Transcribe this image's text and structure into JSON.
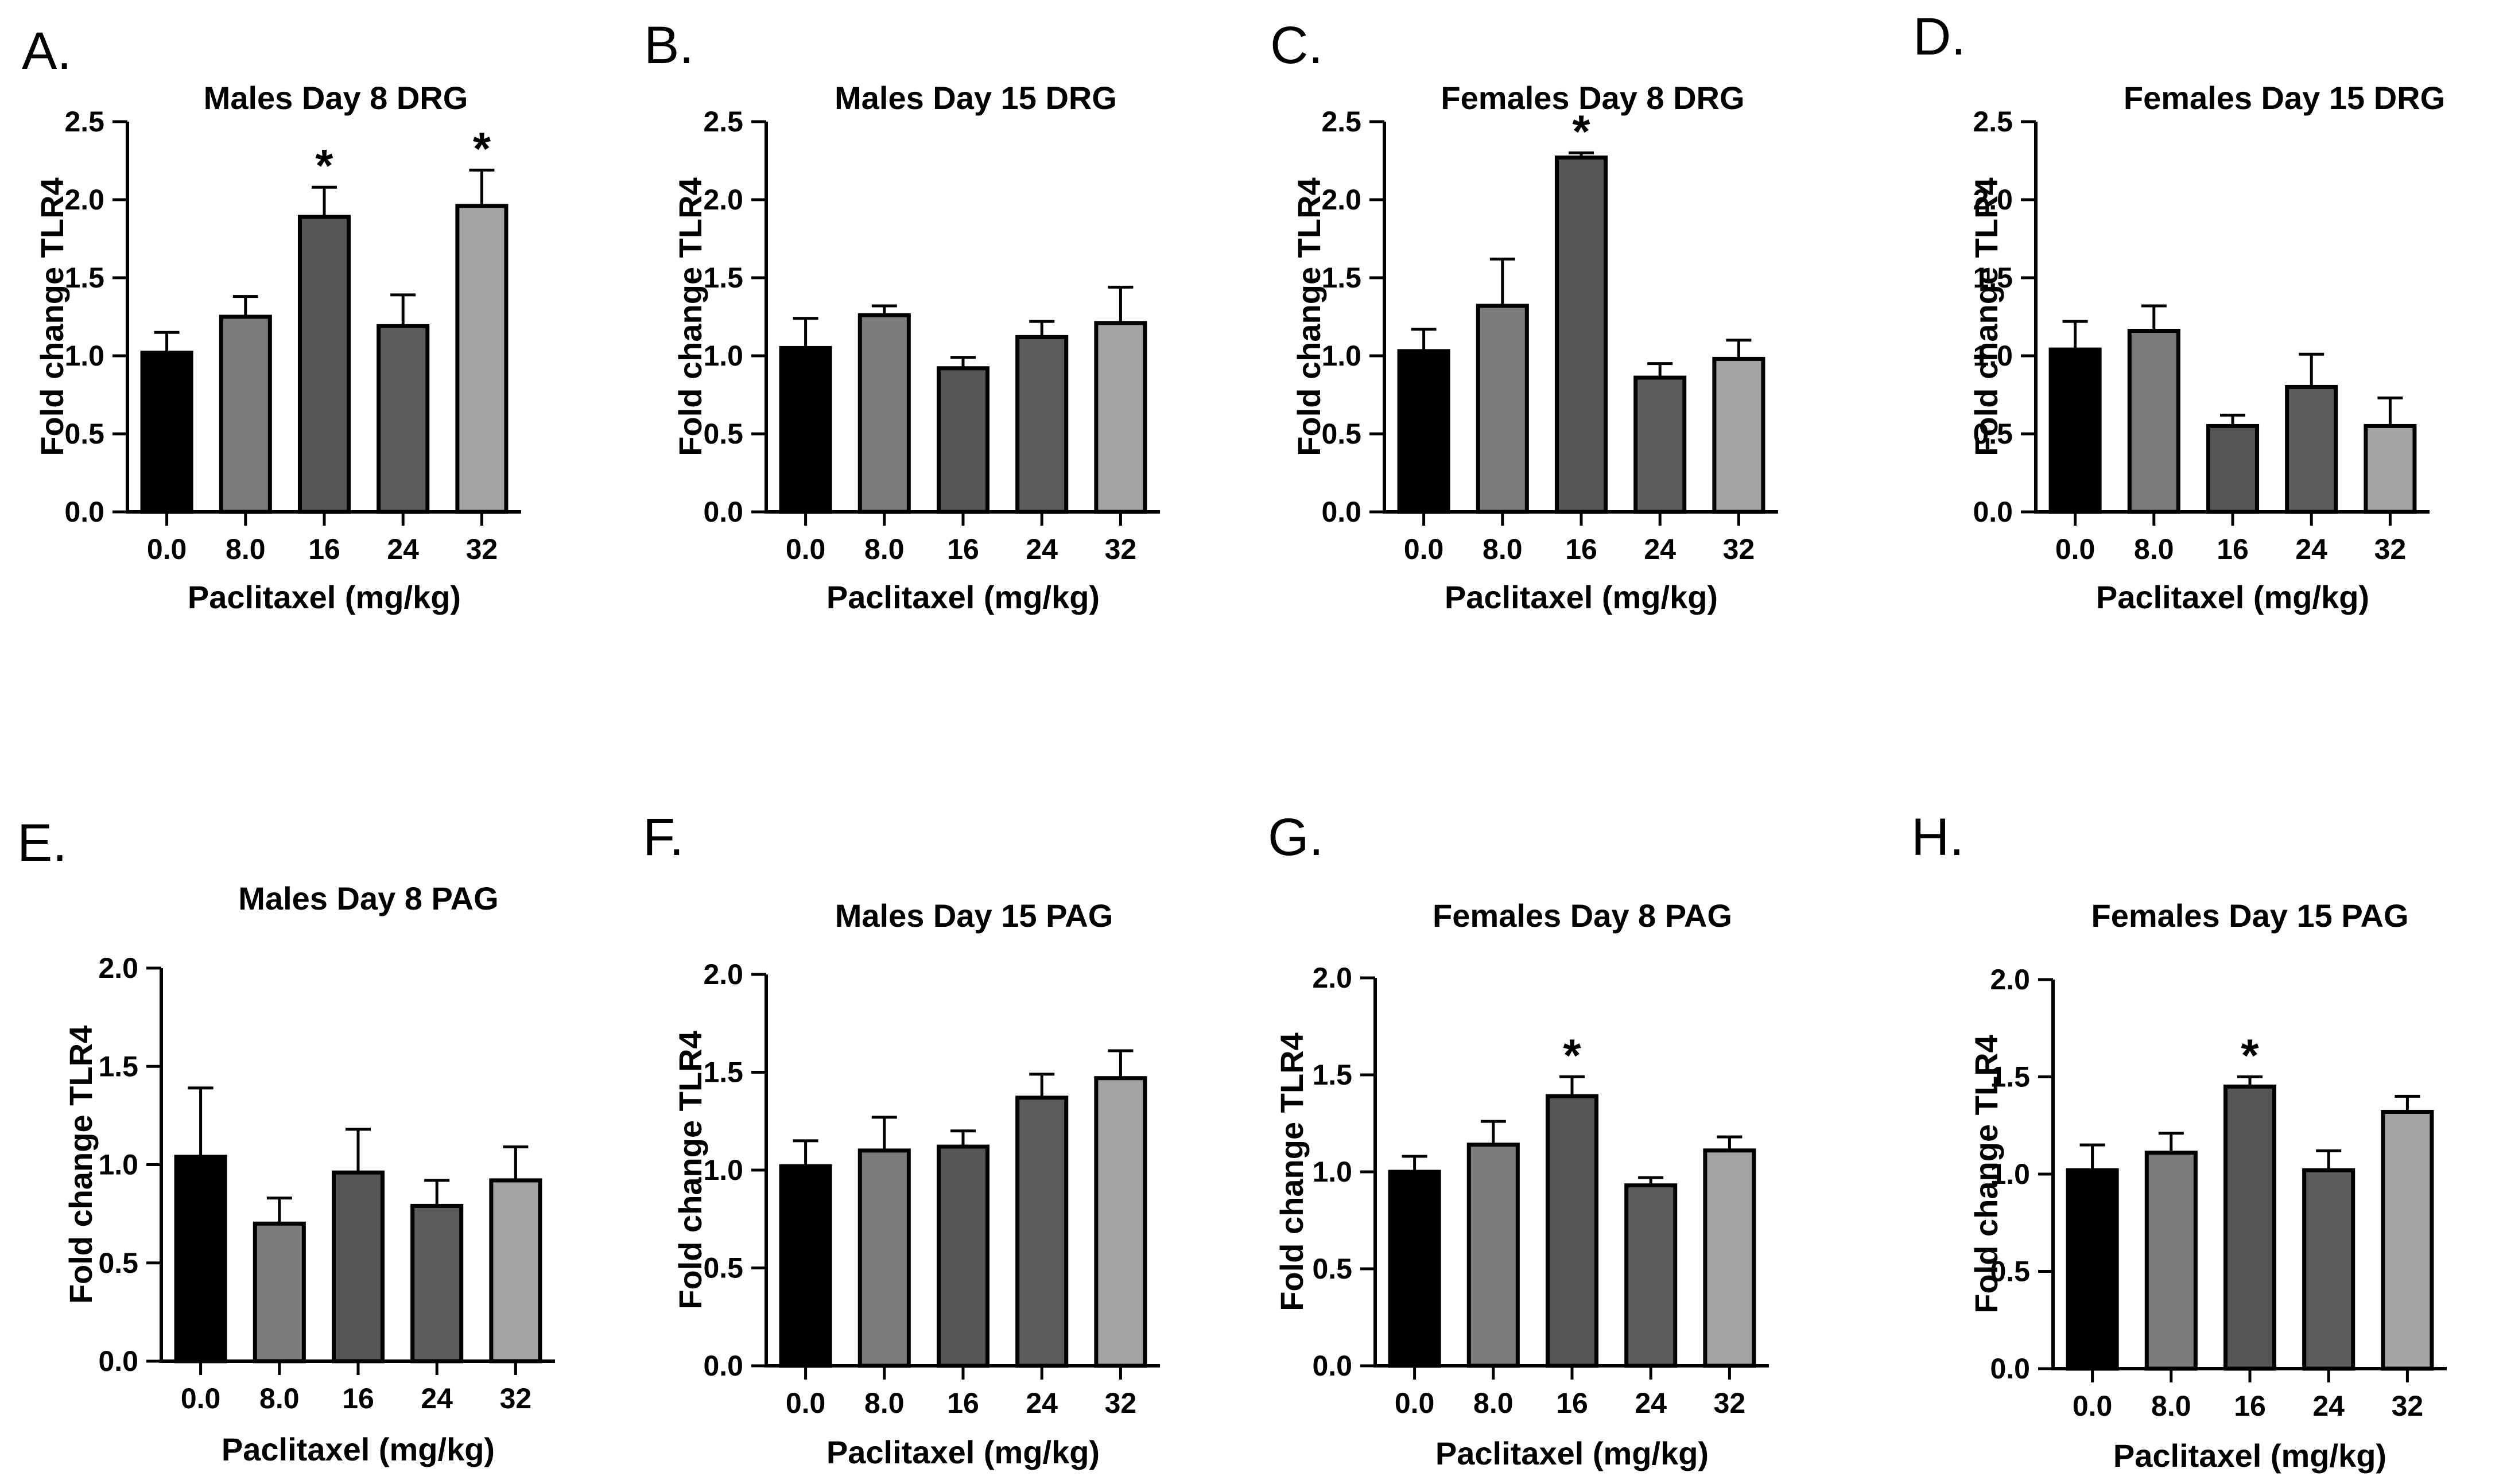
{
  "colors": {
    "bar_fills": [
      "#000000",
      "#7b7b7b",
      "#555555",
      "#5c5c5c",
      "#a4a4a4"
    ],
    "axis": "#000000",
    "background": "#ffffff"
  },
  "chart_data": [
    {
      "id": "A",
      "panel_letter": "A.",
      "type": "bar",
      "title": "Males Day 8 DRG",
      "ylabel": "Fold change  TLR4",
      "xlabel": "Paclitaxel (mg/kg)",
      "categories": [
        "0.0",
        "8.0",
        "16",
        "24",
        "32"
      ],
      "values": [
        1.02,
        1.25,
        1.89,
        1.19,
        1.96
      ],
      "errors": [
        0.13,
        0.13,
        0.19,
        0.2,
        0.23
      ],
      "significant": [
        false,
        false,
        true,
        false,
        true
      ],
      "significance_marker": "*",
      "ylim": [
        0,
        2.5
      ],
      "yticks": [
        "0.0",
        "0.5",
        "1.0",
        "1.5",
        "2.0",
        "2.5"
      ]
    },
    {
      "id": "B",
      "panel_letter": "B.",
      "type": "bar",
      "title": "Males Day 15 DRG",
      "ylabel": "Fold change  TLR4",
      "xlabel": "Paclitaxel (mg/kg)",
      "categories": [
        "0.0",
        "8.0",
        "16",
        "24",
        "32"
      ],
      "values": [
        1.05,
        1.26,
        0.92,
        1.12,
        1.21
      ],
      "errors": [
        0.19,
        0.06,
        0.07,
        0.1,
        0.23
      ],
      "significant": [
        false,
        false,
        false,
        false,
        false
      ],
      "significance_marker": "*",
      "ylim": [
        0,
        2.5
      ],
      "yticks": [
        "0.0",
        "0.5",
        "1.0",
        "1.5",
        "2.0",
        "2.5"
      ]
    },
    {
      "id": "C",
      "panel_letter": "C.",
      "type": "bar",
      "title": "Females Day 8 DRG",
      "ylabel": "Fold change TLR4",
      "xlabel": "Paclitaxel (mg/kg)",
      "categories": [
        "0.0",
        "8.0",
        "16",
        "24",
        "32"
      ],
      "values": [
        1.03,
        1.32,
        2.27,
        0.86,
        0.98
      ],
      "errors": [
        0.14,
        0.3,
        0.03,
        0.09,
        0.12
      ],
      "significant": [
        false,
        false,
        true,
        false,
        false
      ],
      "significance_marker": "*",
      "ylim": [
        0,
        2.5
      ],
      "yticks": [
        "0.0",
        "0.5",
        "1.0",
        "1.5",
        "2.0",
        "2.5"
      ]
    },
    {
      "id": "D",
      "panel_letter": "D.",
      "type": "bar",
      "title": "Females Day 15 DRG",
      "ylabel": "Fold change TLR4",
      "xlabel": "Paclitaxel (mg/kg)",
      "categories": [
        "0.0",
        "8.0",
        "16",
        "24",
        "32"
      ],
      "values": [
        1.04,
        1.16,
        0.55,
        0.8,
        0.55
      ],
      "errors": [
        0.18,
        0.16,
        0.07,
        0.21,
        0.18
      ],
      "significant": [
        false,
        false,
        false,
        false,
        false
      ],
      "significance_marker": "*",
      "ylim": [
        0,
        2.5
      ],
      "yticks": [
        "0.0",
        "0.5",
        "1.0",
        "1.5",
        "2.0",
        "2.5"
      ]
    },
    {
      "id": "E",
      "panel_letter": "E.",
      "type": "bar",
      "title": "Males Day 8 PAG",
      "ylabel": "Fold change  TLR4",
      "xlabel": "Paclitaxel (mg/kg)",
      "categories": [
        "0.0",
        "8.0",
        "16",
        "24",
        "32"
      ],
      "values": [
        1.04,
        0.7,
        0.96,
        0.79,
        0.92
      ],
      "errors": [
        0.35,
        0.13,
        0.22,
        0.13,
        0.17
      ],
      "significant": [
        false,
        false,
        false,
        false,
        false
      ],
      "significance_marker": "*",
      "ylim": [
        0,
        2.0
      ],
      "yticks": [
        "0.0",
        "0.5",
        "1.0",
        "1.5",
        "2.0"
      ]
    },
    {
      "id": "F",
      "panel_letter": "F.",
      "type": "bar",
      "title": "Males Day 15 PAG",
      "ylabel": "Fold change  TLR4",
      "xlabel": "Paclitaxel (mg/kg)",
      "categories": [
        "0.0",
        "8.0",
        "16",
        "24",
        "32"
      ],
      "values": [
        1.02,
        1.1,
        1.12,
        1.37,
        1.47
      ],
      "errors": [
        0.13,
        0.17,
        0.08,
        0.12,
        0.14
      ],
      "significant": [
        false,
        false,
        false,
        false,
        false
      ],
      "significance_marker": "*",
      "ylim": [
        0,
        2.0
      ],
      "yticks": [
        "0.0",
        "0.5",
        "1.0",
        "1.5",
        "2.0"
      ]
    },
    {
      "id": "G",
      "panel_letter": "G.",
      "type": "bar",
      "title": "Females Day 8 PAG",
      "ylabel": "Fold change TLR4",
      "xlabel": "Paclitaxel (mg/kg)",
      "categories": [
        "0.0",
        "8.0",
        "16",
        "24",
        "32"
      ],
      "values": [
        1.0,
        1.14,
        1.39,
        0.93,
        1.11
      ],
      "errors": [
        0.08,
        0.12,
        0.1,
        0.04,
        0.07
      ],
      "significant": [
        false,
        false,
        true,
        false,
        false
      ],
      "significance_marker": "*",
      "ylim": [
        0,
        2.0
      ],
      "yticks": [
        "0.0",
        "0.5",
        "1.0",
        "1.5",
        "2.0"
      ]
    },
    {
      "id": "H",
      "panel_letter": "H.",
      "type": "bar",
      "title": "Females Day 15 PAG",
      "ylabel": "Fold change TLR4",
      "xlabel": "Paclitaxel (mg/kg)",
      "categories": [
        "0.0",
        "8.0",
        "16",
        "24",
        "32"
      ],
      "values": [
        1.02,
        1.11,
        1.45,
        1.02,
        1.32
      ],
      "errors": [
        0.13,
        0.1,
        0.05,
        0.1,
        0.08
      ],
      "significant": [
        false,
        false,
        true,
        false,
        false
      ],
      "significance_marker": "*",
      "ylim": [
        0,
        2.0
      ],
      "yticks": [
        "0.0",
        "0.5",
        "1.0",
        "1.5",
        "2.0"
      ]
    }
  ]
}
